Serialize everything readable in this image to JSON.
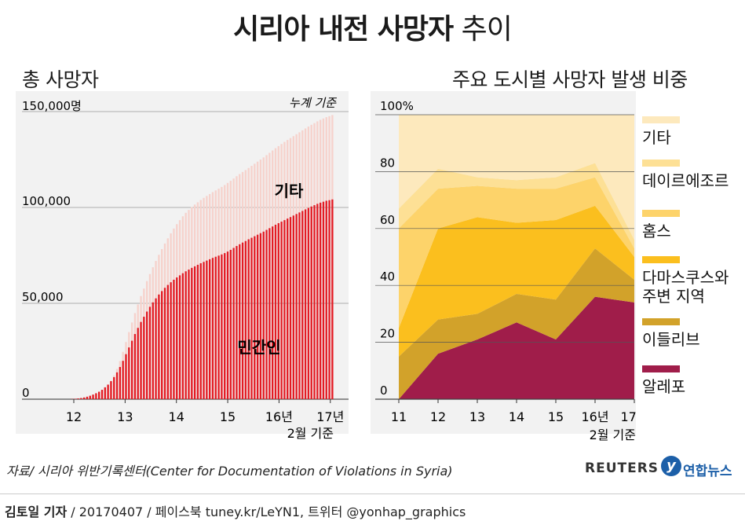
{
  "title": {
    "main": "시리아 내전 사망자",
    "suffix": "추이"
  },
  "colors": {
    "civilian": "#e31b23",
    "other": "#f6d2cc",
    "aleppo": "#a01d4a",
    "idlib": "#d2a22a",
    "damascus": "#fbbf1e",
    "homs": "#fdd36a",
    "deir": "#fde095",
    "others_area": "#fde9bd"
  },
  "left_chart": {
    "subtitle": "총 사망자",
    "note": "누계 기준",
    "label_other": "기타",
    "label_civilian": "민간인",
    "y_ticks": [
      "150,000명",
      "100,000",
      "50,000",
      "0"
    ],
    "x_ticks": [
      "12",
      "13",
      "14",
      "15",
      "16년",
      "17년"
    ],
    "x_note": "2월 기준"
  },
  "right_chart": {
    "subtitle": "주요 도시별 사망자 발생 비중",
    "y_ticks": [
      "100%",
      "80",
      "60",
      "40",
      "20",
      "0"
    ],
    "x_ticks": [
      "11",
      "12",
      "13",
      "14",
      "15",
      "16년",
      "17년"
    ],
    "x_note": "2월 기준",
    "legend": [
      {
        "label": "기타",
        "color_key": "others_area"
      },
      {
        "label": "데이르에조르",
        "color_key": "deir"
      },
      {
        "label": "홈스",
        "color_key": "homs"
      },
      {
        "label": "다마스쿠스와 주변 지역",
        "color_key": "damascus"
      },
      {
        "label": "이들리브",
        "color_key": "idlib"
      },
      {
        "label": "알레포",
        "color_key": "aleppo"
      }
    ]
  },
  "chart_data": [
    {
      "type": "bar",
      "title": "총 사망자",
      "ylabel": "명 (누계)",
      "ylim": [
        0,
        150000
      ],
      "x_start": 2011.25,
      "x_end": 2017.08,
      "series": [
        {
          "name": "민간인",
          "values": [
            0,
            0,
            0,
            0,
            0,
            0,
            0,
            0,
            0,
            0,
            0,
            0,
            100,
            200,
            400,
            600,
            900,
            1300,
            1800,
            2400,
            3100,
            3900,
            4900,
            6200,
            7600,
            9400,
            11500,
            14000,
            16800,
            20000,
            23500,
            27000,
            30500,
            34000,
            37200,
            40300,
            43000,
            45700,
            48200,
            50500,
            52600,
            54600,
            56400,
            58100,
            59600,
            61000,
            62300,
            63500,
            64600,
            65700,
            66700,
            67600,
            68500,
            69300,
            70100,
            70900,
            71600,
            72300,
            73000,
            73700,
            74300,
            74900,
            75500,
            76200,
            77000,
            77900,
            78900,
            79900,
            80800,
            81700,
            82500,
            83400,
            84200,
            85000,
            85800,
            86600,
            87400,
            88300,
            89200,
            90100,
            91000,
            91800,
            92600,
            93400,
            94200,
            95000,
            95800,
            96600,
            97400,
            98200,
            99000,
            99800,
            100500,
            101200,
            101900,
            102500,
            103000,
            103500,
            103800,
            104200
          ]
        },
        {
          "name": "기타",
          "values": [
            0,
            0,
            0,
            0,
            0,
            0,
            0,
            0,
            0,
            0,
            0,
            0,
            0,
            0,
            0,
            0,
            0,
            0,
            0,
            0,
            0,
            0,
            0,
            0,
            0,
            300,
            900,
            1800,
            3100,
            4700,
            6300,
            8000,
            9500,
            10900,
            12200,
            13500,
            14700,
            15900,
            17100,
            18300,
            19500,
            20700,
            21900,
            23100,
            24300,
            25500,
            26700,
            27800,
            28800,
            29700,
            30500,
            31100,
            31700,
            32200,
            32600,
            33000,
            33400,
            33700,
            34000,
            34300,
            34600,
            34900,
            35200,
            35500,
            35800,
            36000,
            36200,
            36400,
            36600,
            36800,
            37000,
            37200,
            37500,
            37800,
            38100,
            38400,
            38700,
            39000,
            39300,
            39600,
            39900,
            40200,
            40500,
            40800,
            41000,
            41200,
            41400,
            41600,
            41800,
            42000,
            42200,
            42400,
            42600,
            42800,
            43000,
            43200,
            43400,
            43600,
            43800,
            44000
          ]
        }
      ],
      "annotations": [
        "기타",
        "민간인"
      ]
    },
    {
      "type": "area",
      "title": "주요 도시별 사망자 발생 비중",
      "ylabel": "%",
      "ylim": [
        0,
        100
      ],
      "x": [
        2011,
        2012,
        2013,
        2014,
        2015,
        2016,
        2017
      ],
      "series": [
        {
          "name": "알레포",
          "values": [
            0,
            16,
            21,
            27,
            21,
            36,
            34
          ]
        },
        {
          "name": "이들리브",
          "values": [
            15,
            12,
            9,
            10,
            14,
            17,
            8
          ]
        },
        {
          "name": "다마스쿠스와 주변 지역",
          "values": [
            10,
            32,
            34,
            25,
            28,
            15,
            8
          ]
        },
        {
          "name": "홈스",
          "values": [
            35,
            14,
            11,
            12,
            11,
            10,
            3
          ]
        },
        {
          "name": "데이르에조르",
          "values": [
            7,
            7,
            3,
            3,
            4,
            5,
            3
          ]
        },
        {
          "name": "기타",
          "values": [
            33,
            19,
            22,
            23,
            22,
            17,
            44
          ]
        }
      ]
    }
  ],
  "source": "자료/ 시리아 위반기록센터(Center for Documentation of Violations in Syria)",
  "brands": {
    "reuters": "REUTERS",
    "yonhap": "연합뉴스",
    "yonhap_mark": "y"
  },
  "footer": {
    "author": "김토일 기자",
    "rest": " / 20170407 / 페이스북 tuney.kr/LeYN1, 트위터 @yonhap_graphics"
  }
}
